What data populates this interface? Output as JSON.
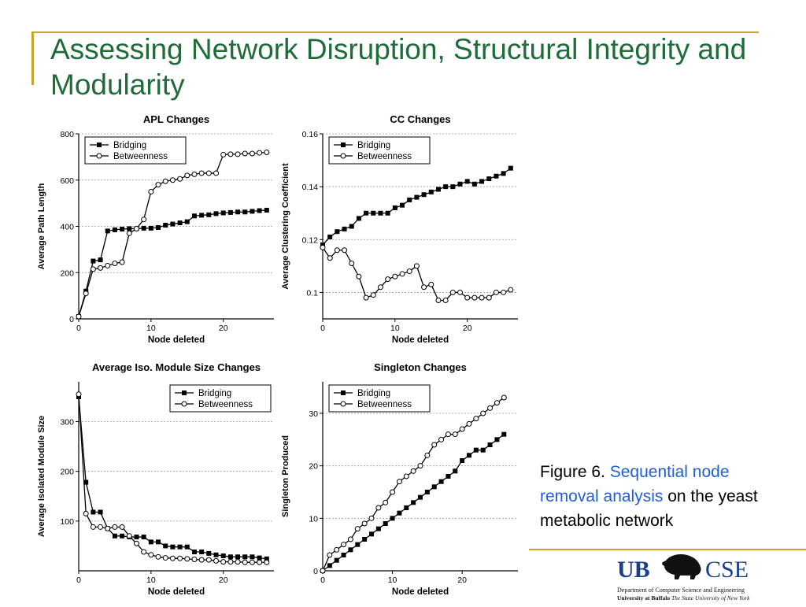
{
  "colors": {
    "accent_gold": "#c9a227",
    "title_green": "#1f6b3a",
    "caption_blue": "#1f5fd6",
    "chart_ink": "#000000",
    "grid": "#9a9a9a",
    "ub_blue": "#1a3f8f"
  },
  "slide": {
    "title": "Assessing Network Disruption, Structural Integrity and Modularity"
  },
  "caption": {
    "prefix": "Figure 6. ",
    "highlight": "Sequential node removal analysis",
    "suffix": " on the yeast metabolic network"
  },
  "logo": {
    "ub_text": "UB",
    "cse_text": "CSE",
    "line1": "Department of Computer Science and Engineering",
    "line2_bold": "University at Buffalo",
    "line2_rest": " The State University of New York",
    "icon": "buffalo-icon"
  },
  "chart_data": [
    {
      "type": "line",
      "title": "APL Changes",
      "xlabel": "Node deleted",
      "ylabel": "Average Path Length",
      "xlim": [
        0,
        27
      ],
      "ylim": [
        0,
        800
      ],
      "xticks": [
        0,
        10,
        20
      ],
      "yticks": [
        0,
        200,
        400,
        600,
        800
      ],
      "grid": "horizontal",
      "legend_position": "top-left",
      "series": [
        {
          "name": "Bridging",
          "marker": "filled-square",
          "x": [
            0,
            1,
            2,
            3,
            4,
            5,
            6,
            7,
            8,
            9,
            10,
            11,
            12,
            13,
            14,
            15,
            16,
            17,
            18,
            19,
            20,
            21,
            22,
            23,
            24,
            25,
            26
          ],
          "y": [
            10,
            120,
            250,
            255,
            380,
            385,
            388,
            390,
            390,
            392,
            392,
            395,
            405,
            410,
            415,
            420,
            445,
            448,
            450,
            455,
            458,
            460,
            462,
            462,
            465,
            468,
            470
          ]
        },
        {
          "name": "Betweenness",
          "marker": "open-circle",
          "x": [
            0,
            1,
            2,
            3,
            4,
            5,
            6,
            7,
            8,
            9,
            10,
            11,
            12,
            13,
            14,
            15,
            16,
            17,
            18,
            19,
            20,
            21,
            22,
            23,
            24,
            25,
            26
          ],
          "y": [
            10,
            110,
            215,
            220,
            230,
            240,
            245,
            370,
            390,
            430,
            550,
            580,
            595,
            600,
            605,
            620,
            625,
            630,
            630,
            630,
            710,
            712,
            712,
            715,
            715,
            718,
            720
          ]
        }
      ]
    },
    {
      "type": "line",
      "title": "CC Changes",
      "xlabel": "Node deleted",
      "ylabel": "Average Clustering Coefficient",
      "xlim": [
        0,
        27
      ],
      "ylim": [
        0.09,
        0.16
      ],
      "xticks": [
        0,
        10,
        20
      ],
      "yticks": [
        0.1,
        0.12,
        0.14,
        0.16
      ],
      "ytick_labels": [
        "0.1",
        "0.12",
        "0.14",
        "0.16"
      ],
      "grid": "horizontal",
      "legend_position": "top-left",
      "series": [
        {
          "name": "Bridging",
          "marker": "filled-square",
          "x": [
            0,
            1,
            2,
            3,
            4,
            5,
            6,
            7,
            8,
            9,
            10,
            11,
            12,
            13,
            14,
            15,
            16,
            17,
            18,
            19,
            20,
            21,
            22,
            23,
            24,
            25,
            26
          ],
          "y": [
            0.118,
            0.121,
            0.123,
            0.124,
            0.125,
            0.128,
            0.13,
            0.13,
            0.13,
            0.13,
            0.132,
            0.133,
            0.135,
            0.136,
            0.137,
            0.138,
            0.139,
            0.14,
            0.14,
            0.141,
            0.142,
            0.141,
            0.142,
            0.143,
            0.144,
            0.145,
            0.147
          ]
        },
        {
          "name": "Betweenness",
          "marker": "open-circle",
          "x": [
            0,
            1,
            2,
            3,
            4,
            5,
            6,
            7,
            8,
            9,
            10,
            11,
            12,
            13,
            14,
            15,
            16,
            17,
            18,
            19,
            20,
            21,
            22,
            23,
            24,
            25,
            26
          ],
          "y": [
            0.117,
            0.113,
            0.116,
            0.116,
            0.111,
            0.106,
            0.098,
            0.099,
            0.102,
            0.105,
            0.106,
            0.107,
            0.108,
            0.11,
            0.102,
            0.103,
            0.097,
            0.097,
            0.1,
            0.1,
            0.098,
            0.098,
            0.098,
            0.098,
            0.1,
            0.1,
            0.101
          ]
        }
      ]
    },
    {
      "type": "line",
      "title": "Average Iso. Module Size Changes",
      "xlabel": "Node deleted",
      "ylabel": "Average Isolated Module Size",
      "xlim": [
        0,
        27
      ],
      "ylim": [
        0,
        380
      ],
      "xticks": [
        0,
        10,
        20
      ],
      "yticks": [
        100,
        200,
        300
      ],
      "grid": "horizontal",
      "legend_position": "top-right",
      "series": [
        {
          "name": "Bridging",
          "marker": "filled-square",
          "x": [
            0,
            1,
            2,
            3,
            4,
            5,
            6,
            7,
            8,
            9,
            10,
            11,
            12,
            13,
            14,
            15,
            16,
            17,
            18,
            19,
            20,
            21,
            22,
            23,
            24,
            25,
            26
          ],
          "y": [
            350,
            178,
            118,
            118,
            85,
            70,
            70,
            68,
            68,
            68,
            58,
            58,
            50,
            48,
            48,
            48,
            38,
            38,
            35,
            32,
            30,
            28,
            28,
            28,
            28,
            26,
            24
          ]
        },
        {
          "name": "Betweenness",
          "marker": "open-circle",
          "x": [
            0,
            1,
            2,
            3,
            4,
            5,
            6,
            7,
            8,
            9,
            10,
            11,
            12,
            13,
            14,
            15,
            16,
            17,
            18,
            19,
            20,
            21,
            22,
            23,
            24,
            25,
            26
          ],
          "y": [
            355,
            115,
            88,
            88,
            85,
            88,
            88,
            70,
            55,
            38,
            32,
            28,
            26,
            25,
            25,
            24,
            23,
            22,
            22,
            20,
            18,
            18,
            18,
            17,
            17,
            17,
            17
          ]
        }
      ]
    },
    {
      "type": "line",
      "title": "Singleton Changes",
      "xlabel": "Node deleted",
      "ylabel": "Singleton Produced",
      "xlim": [
        0,
        28
      ],
      "ylim": [
        0,
        36
      ],
      "xticks": [
        0,
        10,
        20
      ],
      "yticks": [
        0,
        10,
        20,
        30
      ],
      "grid": "horizontal",
      "legend_position": "top-left",
      "series": [
        {
          "name": "Bridging",
          "marker": "filled-square",
          "x": [
            0,
            1,
            2,
            3,
            4,
            5,
            6,
            7,
            8,
            9,
            10,
            11,
            12,
            13,
            14,
            15,
            16,
            17,
            18,
            19,
            20,
            21,
            22,
            23,
            24,
            25,
            26
          ],
          "y": [
            0,
            1,
            2,
            3,
            4,
            5,
            6,
            7,
            8,
            9,
            10,
            11,
            12,
            13,
            14,
            15,
            16,
            17,
            18,
            19,
            21,
            22,
            23,
            23,
            24,
            25,
            26
          ]
        },
        {
          "name": "Betweenness",
          "marker": "open-circle",
          "x": [
            0,
            1,
            2,
            3,
            4,
            5,
            6,
            7,
            8,
            9,
            10,
            11,
            12,
            13,
            14,
            15,
            16,
            17,
            18,
            19,
            20,
            21,
            22,
            23,
            24,
            25,
            26
          ],
          "y": [
            0,
            3,
            4,
            5,
            6,
            8,
            9,
            10,
            12,
            13,
            15,
            17,
            18,
            19,
            20,
            22,
            24,
            25,
            26,
            26,
            27,
            28,
            29,
            30,
            31,
            32,
            33
          ]
        }
      ]
    }
  ]
}
